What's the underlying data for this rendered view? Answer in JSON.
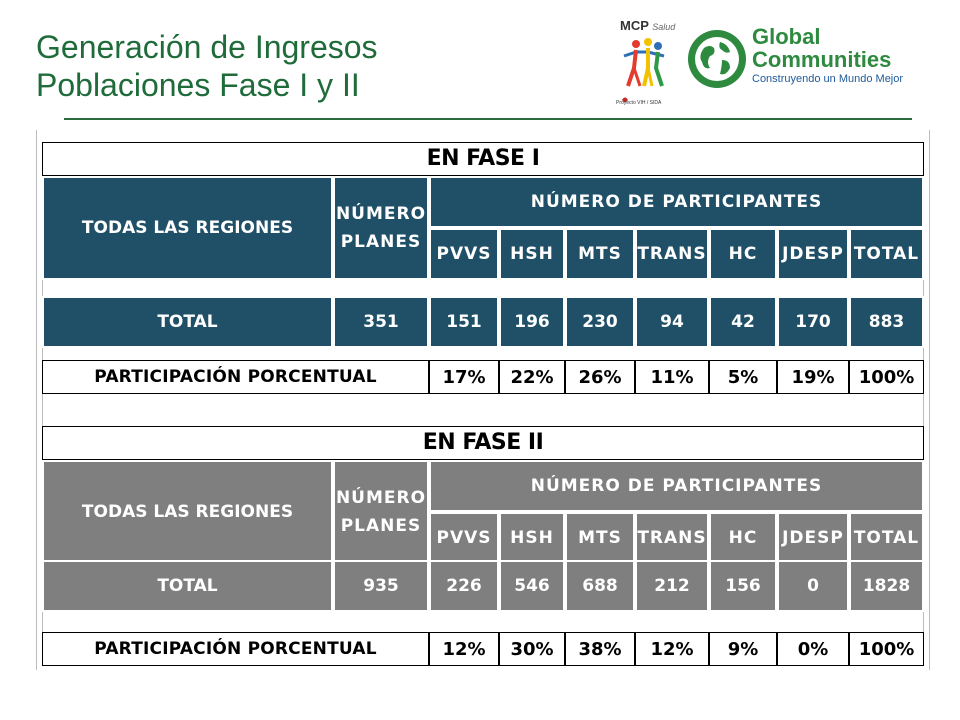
{
  "title": {
    "line1": "Generación de Ingresos",
    "line2": "Poblaciones Fase I y II"
  },
  "logos": {
    "mcp": {
      "name": "MCP",
      "tagline": "Salud",
      "footer": "Proyecto VIH / SIDA"
    },
    "global_communities": {
      "line1": "Global",
      "line2": "Communities",
      "tagline": "Construyendo un Mundo Mejor"
    }
  },
  "colors": {
    "title_green": "#1f6b3a",
    "phase1_header": "#1f5068",
    "phase2_header": "#7f7f7f",
    "brand_green": "#2d8a3e",
    "brand_blue": "#1e5a9b"
  },
  "phase1": {
    "title": "EN FASE I",
    "header": {
      "region": "TODAS LAS REGIONES",
      "num_planes_line1": "NÚMERO",
      "num_planes_line2": "PLANES",
      "num_participantes": "NÚMERO DE PARTICIPANTES",
      "columns": [
        "PVVS",
        "HSH",
        "MTS",
        "TRANS",
        "HC",
        "JDESP",
        "TOTAL"
      ]
    },
    "total": {
      "label": "TOTAL",
      "planes": "351",
      "values": [
        "151",
        "196",
        "230",
        "94",
        "42",
        "170",
        "883"
      ]
    },
    "percent": {
      "label": "PARTICIPACIÓN PORCENTUAL",
      "values": [
        "17%",
        "22%",
        "26%",
        "11%",
        "5%",
        "19%",
        "100%"
      ]
    }
  },
  "phase2": {
    "title": "EN FASE II",
    "header": {
      "region": "TODAS LAS REGIONES",
      "num_planes_line1": "NÚMERO",
      "num_planes_line2": "PLANES",
      "num_participantes": "NÚMERO DE PARTICIPANTES",
      "columns": [
        "PVVS",
        "HSH",
        "MTS",
        "TRANS",
        "HC",
        "JDESP",
        "TOTAL"
      ]
    },
    "total": {
      "label": "TOTAL",
      "planes": "935",
      "values": [
        "226",
        "546",
        "688",
        "212",
        "156",
        "0",
        "1828"
      ]
    },
    "percent": {
      "label": "PARTICIPACIÓN PORCENTUAL",
      "values": [
        "12%",
        "30%",
        "38%",
        "12%",
        "9%",
        "0%",
        "100%"
      ]
    }
  }
}
